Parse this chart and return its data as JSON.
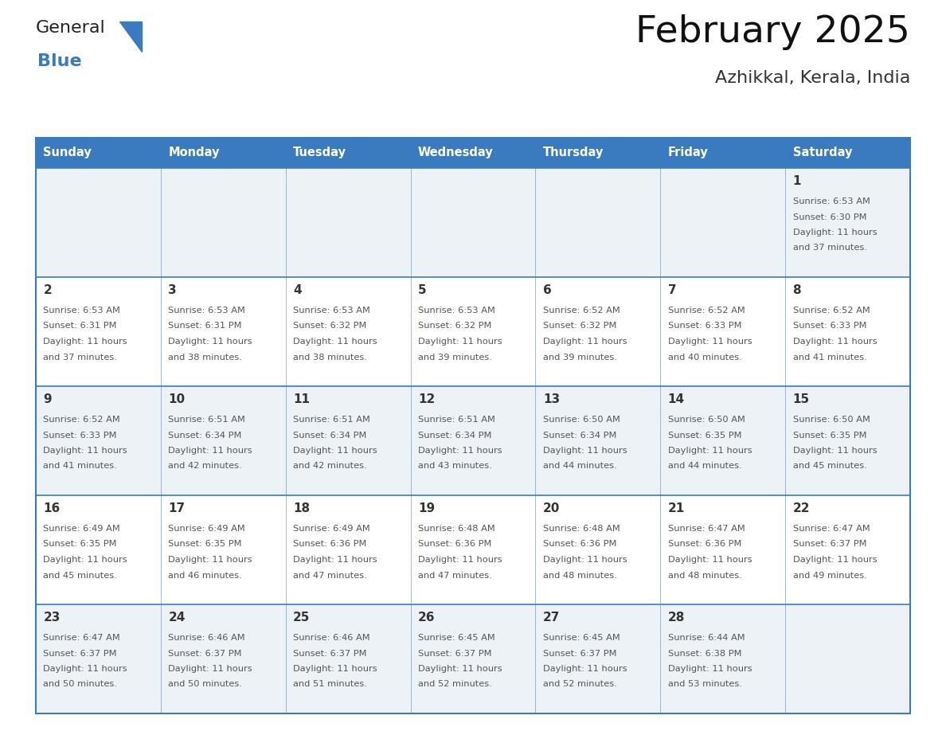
{
  "title": "February 2025",
  "subtitle": "Azhikkal, Kerala, India",
  "days_of_week": [
    "Sunday",
    "Monday",
    "Tuesday",
    "Wednesday",
    "Thursday",
    "Friday",
    "Saturday"
  ],
  "header_bg": "#3a7bbf",
  "header_text": "#ffffff",
  "cell_bg_odd": "#edf2f7",
  "cell_bg_even": "#ffffff",
  "border_color": "#3a7bbf",
  "text_color": "#333333",
  "text_color_light": "#555555",
  "calendar_data": [
    [
      null,
      null,
      null,
      null,
      null,
      null,
      {
        "day": 1,
        "sunrise": "6:53 AM",
        "sunset": "6:30 PM",
        "daylight_h": "11 hours",
        "daylight_m": "and 37 minutes."
      }
    ],
    [
      {
        "day": 2,
        "sunrise": "6:53 AM",
        "sunset": "6:31 PM",
        "daylight_h": "11 hours",
        "daylight_m": "and 37 minutes."
      },
      {
        "day": 3,
        "sunrise": "6:53 AM",
        "sunset": "6:31 PM",
        "daylight_h": "11 hours",
        "daylight_m": "and 38 minutes."
      },
      {
        "day": 4,
        "sunrise": "6:53 AM",
        "sunset": "6:32 PM",
        "daylight_h": "11 hours",
        "daylight_m": "and 38 minutes."
      },
      {
        "day": 5,
        "sunrise": "6:53 AM",
        "sunset": "6:32 PM",
        "daylight_h": "11 hours",
        "daylight_m": "and 39 minutes."
      },
      {
        "day": 6,
        "sunrise": "6:52 AM",
        "sunset": "6:32 PM",
        "daylight_h": "11 hours",
        "daylight_m": "and 39 minutes."
      },
      {
        "day": 7,
        "sunrise": "6:52 AM",
        "sunset": "6:33 PM",
        "daylight_h": "11 hours",
        "daylight_m": "and 40 minutes."
      },
      {
        "day": 8,
        "sunrise": "6:52 AM",
        "sunset": "6:33 PM",
        "daylight_h": "11 hours",
        "daylight_m": "and 41 minutes."
      }
    ],
    [
      {
        "day": 9,
        "sunrise": "6:52 AM",
        "sunset": "6:33 PM",
        "daylight_h": "11 hours",
        "daylight_m": "and 41 minutes."
      },
      {
        "day": 10,
        "sunrise": "6:51 AM",
        "sunset": "6:34 PM",
        "daylight_h": "11 hours",
        "daylight_m": "and 42 minutes."
      },
      {
        "day": 11,
        "sunrise": "6:51 AM",
        "sunset": "6:34 PM",
        "daylight_h": "11 hours",
        "daylight_m": "and 42 minutes."
      },
      {
        "day": 12,
        "sunrise": "6:51 AM",
        "sunset": "6:34 PM",
        "daylight_h": "11 hours",
        "daylight_m": "and 43 minutes."
      },
      {
        "day": 13,
        "sunrise": "6:50 AM",
        "sunset": "6:34 PM",
        "daylight_h": "11 hours",
        "daylight_m": "and 44 minutes."
      },
      {
        "day": 14,
        "sunrise": "6:50 AM",
        "sunset": "6:35 PM",
        "daylight_h": "11 hours",
        "daylight_m": "and 44 minutes."
      },
      {
        "day": 15,
        "sunrise": "6:50 AM",
        "sunset": "6:35 PM",
        "daylight_h": "11 hours",
        "daylight_m": "and 45 minutes."
      }
    ],
    [
      {
        "day": 16,
        "sunrise": "6:49 AM",
        "sunset": "6:35 PM",
        "daylight_h": "11 hours",
        "daylight_m": "and 45 minutes."
      },
      {
        "day": 17,
        "sunrise": "6:49 AM",
        "sunset": "6:35 PM",
        "daylight_h": "11 hours",
        "daylight_m": "and 46 minutes."
      },
      {
        "day": 18,
        "sunrise": "6:49 AM",
        "sunset": "6:36 PM",
        "daylight_h": "11 hours",
        "daylight_m": "and 47 minutes."
      },
      {
        "day": 19,
        "sunrise": "6:48 AM",
        "sunset": "6:36 PM",
        "daylight_h": "11 hours",
        "daylight_m": "and 47 minutes."
      },
      {
        "day": 20,
        "sunrise": "6:48 AM",
        "sunset": "6:36 PM",
        "daylight_h": "11 hours",
        "daylight_m": "and 48 minutes."
      },
      {
        "day": 21,
        "sunrise": "6:47 AM",
        "sunset": "6:36 PM",
        "daylight_h": "11 hours",
        "daylight_m": "and 48 minutes."
      },
      {
        "day": 22,
        "sunrise": "6:47 AM",
        "sunset": "6:37 PM",
        "daylight_h": "11 hours",
        "daylight_m": "and 49 minutes."
      }
    ],
    [
      {
        "day": 23,
        "sunrise": "6:47 AM",
        "sunset": "6:37 PM",
        "daylight_h": "11 hours",
        "daylight_m": "and 50 minutes."
      },
      {
        "day": 24,
        "sunrise": "6:46 AM",
        "sunset": "6:37 PM",
        "daylight_h": "11 hours",
        "daylight_m": "and 50 minutes."
      },
      {
        "day": 25,
        "sunrise": "6:46 AM",
        "sunset": "6:37 PM",
        "daylight_h": "11 hours",
        "daylight_m": "and 51 minutes."
      },
      {
        "day": 26,
        "sunrise": "6:45 AM",
        "sunset": "6:37 PM",
        "daylight_h": "11 hours",
        "daylight_m": "and 52 minutes."
      },
      {
        "day": 27,
        "sunrise": "6:45 AM",
        "sunset": "6:37 PM",
        "daylight_h": "11 hours",
        "daylight_m": "and 52 minutes."
      },
      {
        "day": 28,
        "sunrise": "6:44 AM",
        "sunset": "6:38 PM",
        "daylight_h": "11 hours",
        "daylight_m": "and 53 minutes."
      },
      null
    ]
  ]
}
